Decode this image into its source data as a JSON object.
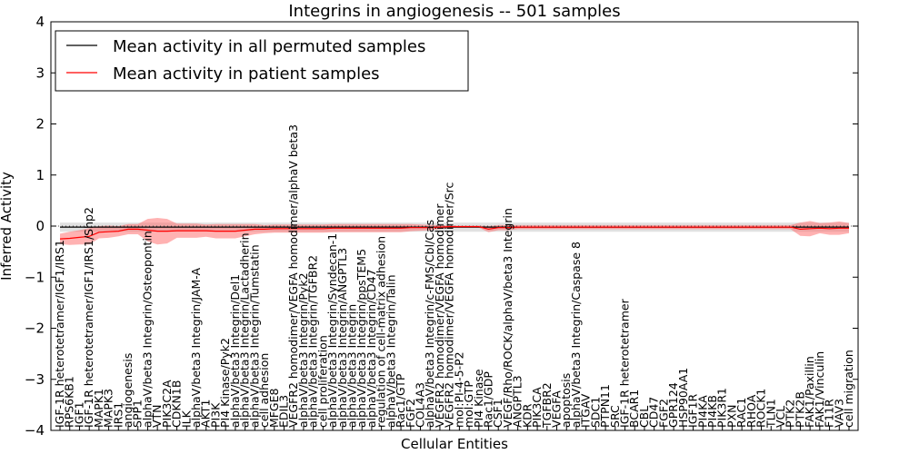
{
  "chart_data": {
    "type": "line",
    "title": "Integrins in angiogenesis -- 501 samples",
    "xlabel": "Cellular Entities",
    "ylabel": "Inferred Activity",
    "ylim": [
      -4,
      4
    ],
    "yticks": [
      "−4",
      "−3",
      "−2",
      "−1",
      "0",
      "1",
      "2",
      "3",
      "4"
    ],
    "grid": false,
    "legend_position": "top-left",
    "categories": [
      "IGF-1R heterotetramer/IGF1/IRS1",
      "RPS6KB1",
      "IGF1",
      "IGF-1R heterotetramer/IGF1/IRS1/Shp2",
      "MAPK1",
      "MAPK3",
      "IRS1",
      "angiogenesis",
      "SPP1",
      "alphaV/beta3 Integrin/Osteopontin",
      "VTN",
      "PIK3C2A",
      "CDKN1B",
      "ILK",
      "alphaV/beta3 Integrin/JAM-A",
      "AKT1",
      "PI3K",
      "PI4 Kinase/Pyk2",
      "alphaV/beta3 Integrin/Del1",
      "alphaV/beta3 Integrin/Lactadherin",
      "alphaV/beta3 Integrin/Tumstatin",
      "cell adhesion",
      "MFGE8",
      "EDIL3",
      "VEGFR2 homodimer/VEGFA homodimer/alphaV beta3",
      "alphaV/beta3 Integrin/Pyk2",
      "alphaV/beta3 Integrin/TGFBR2",
      "cell proliferation",
      "alphaV/beta3 Integrin/Syndecan-1",
      "alphaV/beta3 Integrin/ANGPTL3",
      "alphaV/beta3 Integrin",
      "alphaV/beta3 Integrin/ppsTEM5",
      "alphaV/beta3 Integrin/CD47",
      "regulation of cell-matrix adhesion",
      "alphaV/beta3 Integrin/Talin",
      "Rac1/GTP",
      "FGF2",
      "COL4A3",
      "alphaV/beta3 Integrin/c-FMS/Cbl/Cas",
      "VEGFR2 homodimer/VEGFA homodimer",
      "VEGFR2 homodimer/VEGFA homodimer/Src",
      "mol:PI-4-5-P2",
      "mol:GTP",
      "PI4 Kinase",
      "Rac1/GDP",
      "CSF1",
      "VEGF/Rho/ROCK/alphaV/beta3 Integrin",
      "ANGPTL3",
      "KDR",
      "PIK3CA",
      "TGFBR2",
      "VEGFA",
      "apoptosis",
      "alphaV/beta3 Integrin/Caspase 8",
      "ITGAV",
      "SDC1",
      "PTPN11",
      "SRC",
      "IGF-1R heterotetramer",
      "BCAR1",
      "CBL",
      "CD47",
      "FGF2",
      "GPR124",
      "HSP90AA1",
      "IGF1R",
      "PI4KA",
      "PI4KB",
      "PIK3R1",
      "PXN",
      "RAC1",
      "RHOA",
      "ROCK1",
      "TLN1",
      "VCL",
      "PTK2",
      "PTK2B",
      "FAK1/Paxillin",
      "FAK1/Vinculin",
      "F11R",
      "VAV3",
      "cell migration"
    ],
    "series": [
      {
        "name": "Mean activity in all permuted samples",
        "color": "#000000",
        "band_color": "#aaaaaa",
        "mean": [
          -0.02,
          -0.02,
          -0.02,
          -0.02,
          -0.02,
          -0.02,
          -0.02,
          -0.02,
          -0.02,
          -0.02,
          -0.02,
          -0.02,
          -0.02,
          -0.02,
          -0.02,
          -0.02,
          -0.02,
          -0.02,
          -0.02,
          -0.02,
          -0.02,
          -0.02,
          -0.02,
          -0.02,
          -0.02,
          -0.02,
          -0.02,
          -0.02,
          -0.02,
          -0.02,
          -0.02,
          -0.02,
          -0.02,
          -0.02,
          -0.02,
          -0.02,
          -0.02,
          -0.02,
          -0.02,
          -0.02,
          -0.02,
          -0.02,
          -0.02,
          -0.02,
          -0.02,
          -0.02,
          -0.02,
          -0.02,
          -0.02,
          -0.02,
          -0.02,
          -0.02,
          -0.02,
          -0.02,
          -0.02,
          -0.02,
          -0.02,
          -0.02,
          -0.02,
          -0.02,
          -0.02,
          -0.02,
          -0.02,
          -0.02,
          -0.02,
          -0.02,
          -0.02,
          -0.02,
          -0.02,
          -0.02,
          -0.02,
          -0.02,
          -0.02,
          -0.02,
          -0.02,
          -0.02,
          -0.02,
          -0.02,
          -0.02,
          -0.02,
          -0.02,
          -0.02
        ],
        "std": [
          0.09,
          0.09,
          0.09,
          0.09,
          0.09,
          0.09,
          0.09,
          0.09,
          0.09,
          0.09,
          0.09,
          0.09,
          0.09,
          0.09,
          0.09,
          0.09,
          0.09,
          0.09,
          0.09,
          0.09,
          0.09,
          0.09,
          0.09,
          0.09,
          0.09,
          0.09,
          0.09,
          0.09,
          0.09,
          0.09,
          0.09,
          0.09,
          0.09,
          0.09,
          0.09,
          0.09,
          0.09,
          0.09,
          0.09,
          0.09,
          0.09,
          0.09,
          0.09,
          0.09,
          0.09,
          0.09,
          0.09,
          0.09,
          0.09,
          0.09,
          0.09,
          0.09,
          0.09,
          0.09,
          0.09,
          0.09,
          0.09,
          0.09,
          0.09,
          0.09,
          0.09,
          0.09,
          0.09,
          0.09,
          0.09,
          0.09,
          0.09,
          0.09,
          0.09,
          0.09,
          0.09,
          0.09,
          0.09,
          0.09,
          0.09,
          0.09,
          0.09,
          0.09,
          0.09,
          0.09,
          0.09,
          0.09
        ]
      },
      {
        "name": "Mean activity in patient samples",
        "color": "#ff0000",
        "band_color": "#ff6666",
        "mean": [
          -0.25,
          -0.24,
          -0.22,
          -0.2,
          -0.12,
          -0.11,
          -0.1,
          -0.06,
          -0.06,
          -0.08,
          -0.1,
          -0.1,
          -0.09,
          -0.09,
          -0.09,
          -0.09,
          -0.1,
          -0.1,
          -0.1,
          -0.08,
          -0.06,
          -0.06,
          -0.05,
          -0.05,
          -0.05,
          -0.05,
          -0.05,
          -0.05,
          -0.04,
          -0.04,
          -0.04,
          -0.04,
          -0.04,
          -0.04,
          -0.04,
          -0.04,
          -0.03,
          -0.03,
          -0.03,
          -0.02,
          -0.01,
          -0.01,
          -0.01,
          -0.01,
          -0.06,
          -0.03,
          -0.03,
          -0.02,
          -0.02,
          -0.02,
          -0.02,
          -0.02,
          -0.02,
          -0.02,
          -0.02,
          -0.02,
          -0.02,
          -0.02,
          -0.02,
          -0.02,
          -0.02,
          -0.02,
          -0.02,
          -0.02,
          -0.02,
          -0.02,
          -0.02,
          -0.02,
          -0.02,
          -0.02,
          -0.02,
          -0.02,
          -0.02,
          -0.02,
          -0.02,
          -0.02,
          -0.06,
          -0.05,
          -0.04,
          -0.05,
          -0.04,
          -0.04
        ],
        "std": [
          0.1,
          0.13,
          0.14,
          0.16,
          0.12,
          0.12,
          0.1,
          0.1,
          0.1,
          0.22,
          0.26,
          0.24,
          0.14,
          0.14,
          0.14,
          0.12,
          0.14,
          0.14,
          0.14,
          0.12,
          0.1,
          0.08,
          0.08,
          0.08,
          0.08,
          0.08,
          0.08,
          0.08,
          0.08,
          0.08,
          0.08,
          0.08,
          0.08,
          0.08,
          0.08,
          0.08,
          0.07,
          0.06,
          0.05,
          0.04,
          0.02,
          0.02,
          0.02,
          0.02,
          0.06,
          0.05,
          0.05,
          0.04,
          0.04,
          0.04,
          0.04,
          0.04,
          0.04,
          0.04,
          0.04,
          0.04,
          0.04,
          0.04,
          0.04,
          0.04,
          0.04,
          0.04,
          0.04,
          0.04,
          0.04,
          0.04,
          0.04,
          0.04,
          0.04,
          0.04,
          0.04,
          0.04,
          0.04,
          0.04,
          0.04,
          0.04,
          0.13,
          0.15,
          0.1,
          0.12,
          0.13,
          0.1
        ]
      }
    ]
  }
}
